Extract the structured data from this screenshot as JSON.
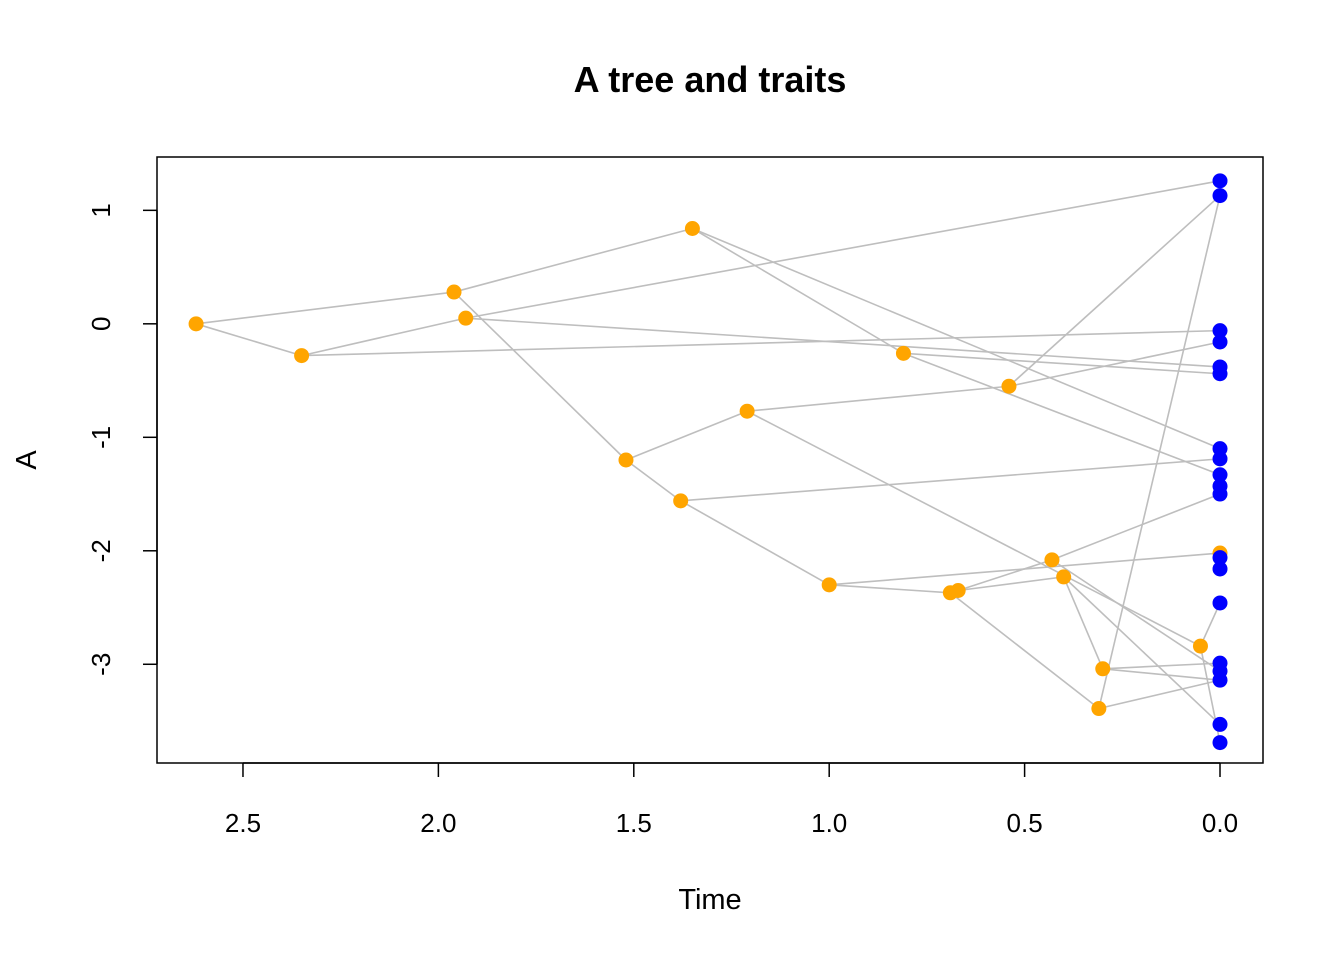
{
  "chart_data": {
    "type": "scatter",
    "title": "A tree and traits",
    "xlabel": "Time",
    "ylabel": "A",
    "x_axis_reversed": true,
    "xlim": [
      2.72,
      -0.11
    ],
    "ylim": [
      -3.87,
      1.47
    ],
    "x_ticks": [
      2.5,
      2.0,
      1.5,
      1.0,
      0.5,
      0.0
    ],
    "x_tick_labels": [
      "2.5",
      "2.0",
      "1.5",
      "1.0",
      "0.5",
      "0.0"
    ],
    "y_ticks": [
      1,
      0,
      -1,
      -2,
      -3
    ],
    "y_tick_labels": [
      "1",
      "0",
      "-1",
      "-2",
      "-3"
    ],
    "grid": false,
    "colors": {
      "internal_node": "#FFA500",
      "tip": "#0000FF",
      "branch": "#BEBEBE"
    },
    "internal_nodes": [
      {
        "id": "n1",
        "x": 2.62,
        "y": 0.0
      },
      {
        "id": "n2",
        "x": 2.35,
        "y": -0.28
      },
      {
        "id": "n3",
        "x": 1.96,
        "y": 0.28
      },
      {
        "id": "n4",
        "x": 1.93,
        "y": 0.05
      },
      {
        "id": "n5",
        "x": 1.35,
        "y": 0.84
      },
      {
        "id": "n6",
        "x": 1.52,
        "y": -1.2
      },
      {
        "id": "n7",
        "x": 1.21,
        "y": -0.77
      },
      {
        "id": "n8",
        "x": 1.38,
        "y": -1.56
      },
      {
        "id": "n9",
        "x": 0.81,
        "y": -0.26
      },
      {
        "id": "n10",
        "x": 0.54,
        "y": -0.55
      },
      {
        "id": "n11",
        "x": 1.0,
        "y": -2.3
      },
      {
        "id": "n12",
        "x": 0.69,
        "y": -2.37
      },
      {
        "id": "n13",
        "x": 0.67,
        "y": -2.35
      },
      {
        "id": "n14",
        "x": 0.43,
        "y": -2.08
      },
      {
        "id": "n15",
        "x": 0.4,
        "y": -2.23
      },
      {
        "id": "n16",
        "x": 0.3,
        "y": -3.04
      },
      {
        "id": "n17",
        "x": 0.31,
        "y": -3.39
      },
      {
        "id": "n18",
        "x": 0.05,
        "y": -2.84
      },
      {
        "id": "n19",
        "x": 0.0,
        "y": -2.02
      }
    ],
    "tips": [
      {
        "id": "t1",
        "x": 0.0,
        "y": 1.26
      },
      {
        "id": "t2",
        "x": 0.0,
        "y": 1.13
      },
      {
        "id": "t3",
        "x": 0.0,
        "y": -0.06
      },
      {
        "id": "t4",
        "x": 0.0,
        "y": -0.16
      },
      {
        "id": "t5",
        "x": 0.0,
        "y": -0.38
      },
      {
        "id": "t6",
        "x": 0.0,
        "y": -0.44
      },
      {
        "id": "t7",
        "x": 0.0,
        "y": -1.1
      },
      {
        "id": "t8",
        "x": 0.0,
        "y": -1.19
      },
      {
        "id": "t9",
        "x": 0.0,
        "y": -1.33
      },
      {
        "id": "t10",
        "x": 0.0,
        "y": -1.43
      },
      {
        "id": "t11",
        "x": 0.0,
        "y": -1.5
      },
      {
        "id": "t12",
        "x": 0.0,
        "y": -2.06
      },
      {
        "id": "t13",
        "x": 0.0,
        "y": -2.16
      },
      {
        "id": "t14",
        "x": 0.0,
        "y": -2.46
      },
      {
        "id": "t15",
        "x": 0.0,
        "y": -2.99
      },
      {
        "id": "t16",
        "x": 0.0,
        "y": -3.06
      },
      {
        "id": "t17",
        "x": 0.0,
        "y": -3.14
      },
      {
        "id": "t18",
        "x": 0.0,
        "y": -3.53
      },
      {
        "id": "t19",
        "x": 0.0,
        "y": -3.69
      }
    ],
    "edges": [
      [
        "n1",
        "n2"
      ],
      [
        "n1",
        "n3"
      ],
      [
        "n2",
        "n4"
      ],
      [
        "n2",
        "t3"
      ],
      [
        "n4",
        "t1"
      ],
      [
        "n4",
        "t5"
      ],
      [
        "n3",
        "n5"
      ],
      [
        "n3",
        "n6"
      ],
      [
        "n5",
        "n9"
      ],
      [
        "n5",
        "t7"
      ],
      [
        "n9",
        "t6"
      ],
      [
        "n9",
        "t9"
      ],
      [
        "n6",
        "n7"
      ],
      [
        "n6",
        "n8"
      ],
      [
        "n7",
        "n10"
      ],
      [
        "n7",
        "n18"
      ],
      [
        "n10",
        "t4"
      ],
      [
        "n10",
        "t2"
      ],
      [
        "n8",
        "t8"
      ],
      [
        "n8",
        "n11"
      ],
      [
        "n11",
        "n12"
      ],
      [
        "n11",
        "n19"
      ],
      [
        "n12",
        "n13"
      ],
      [
        "n12",
        "n17"
      ],
      [
        "n13",
        "n15"
      ],
      [
        "n13",
        "n14"
      ],
      [
        "n14",
        "t11"
      ],
      [
        "n14",
        "t16"
      ],
      [
        "n15",
        "n16"
      ],
      [
        "n15",
        "t18"
      ],
      [
        "n16",
        "t15"
      ],
      [
        "n16",
        "t17"
      ],
      [
        "n17",
        "t2"
      ],
      [
        "n17",
        "t17"
      ],
      [
        "n18",
        "t14"
      ],
      [
        "n18",
        "t19"
      ],
      [
        "n19",
        "t13"
      ]
    ]
  }
}
